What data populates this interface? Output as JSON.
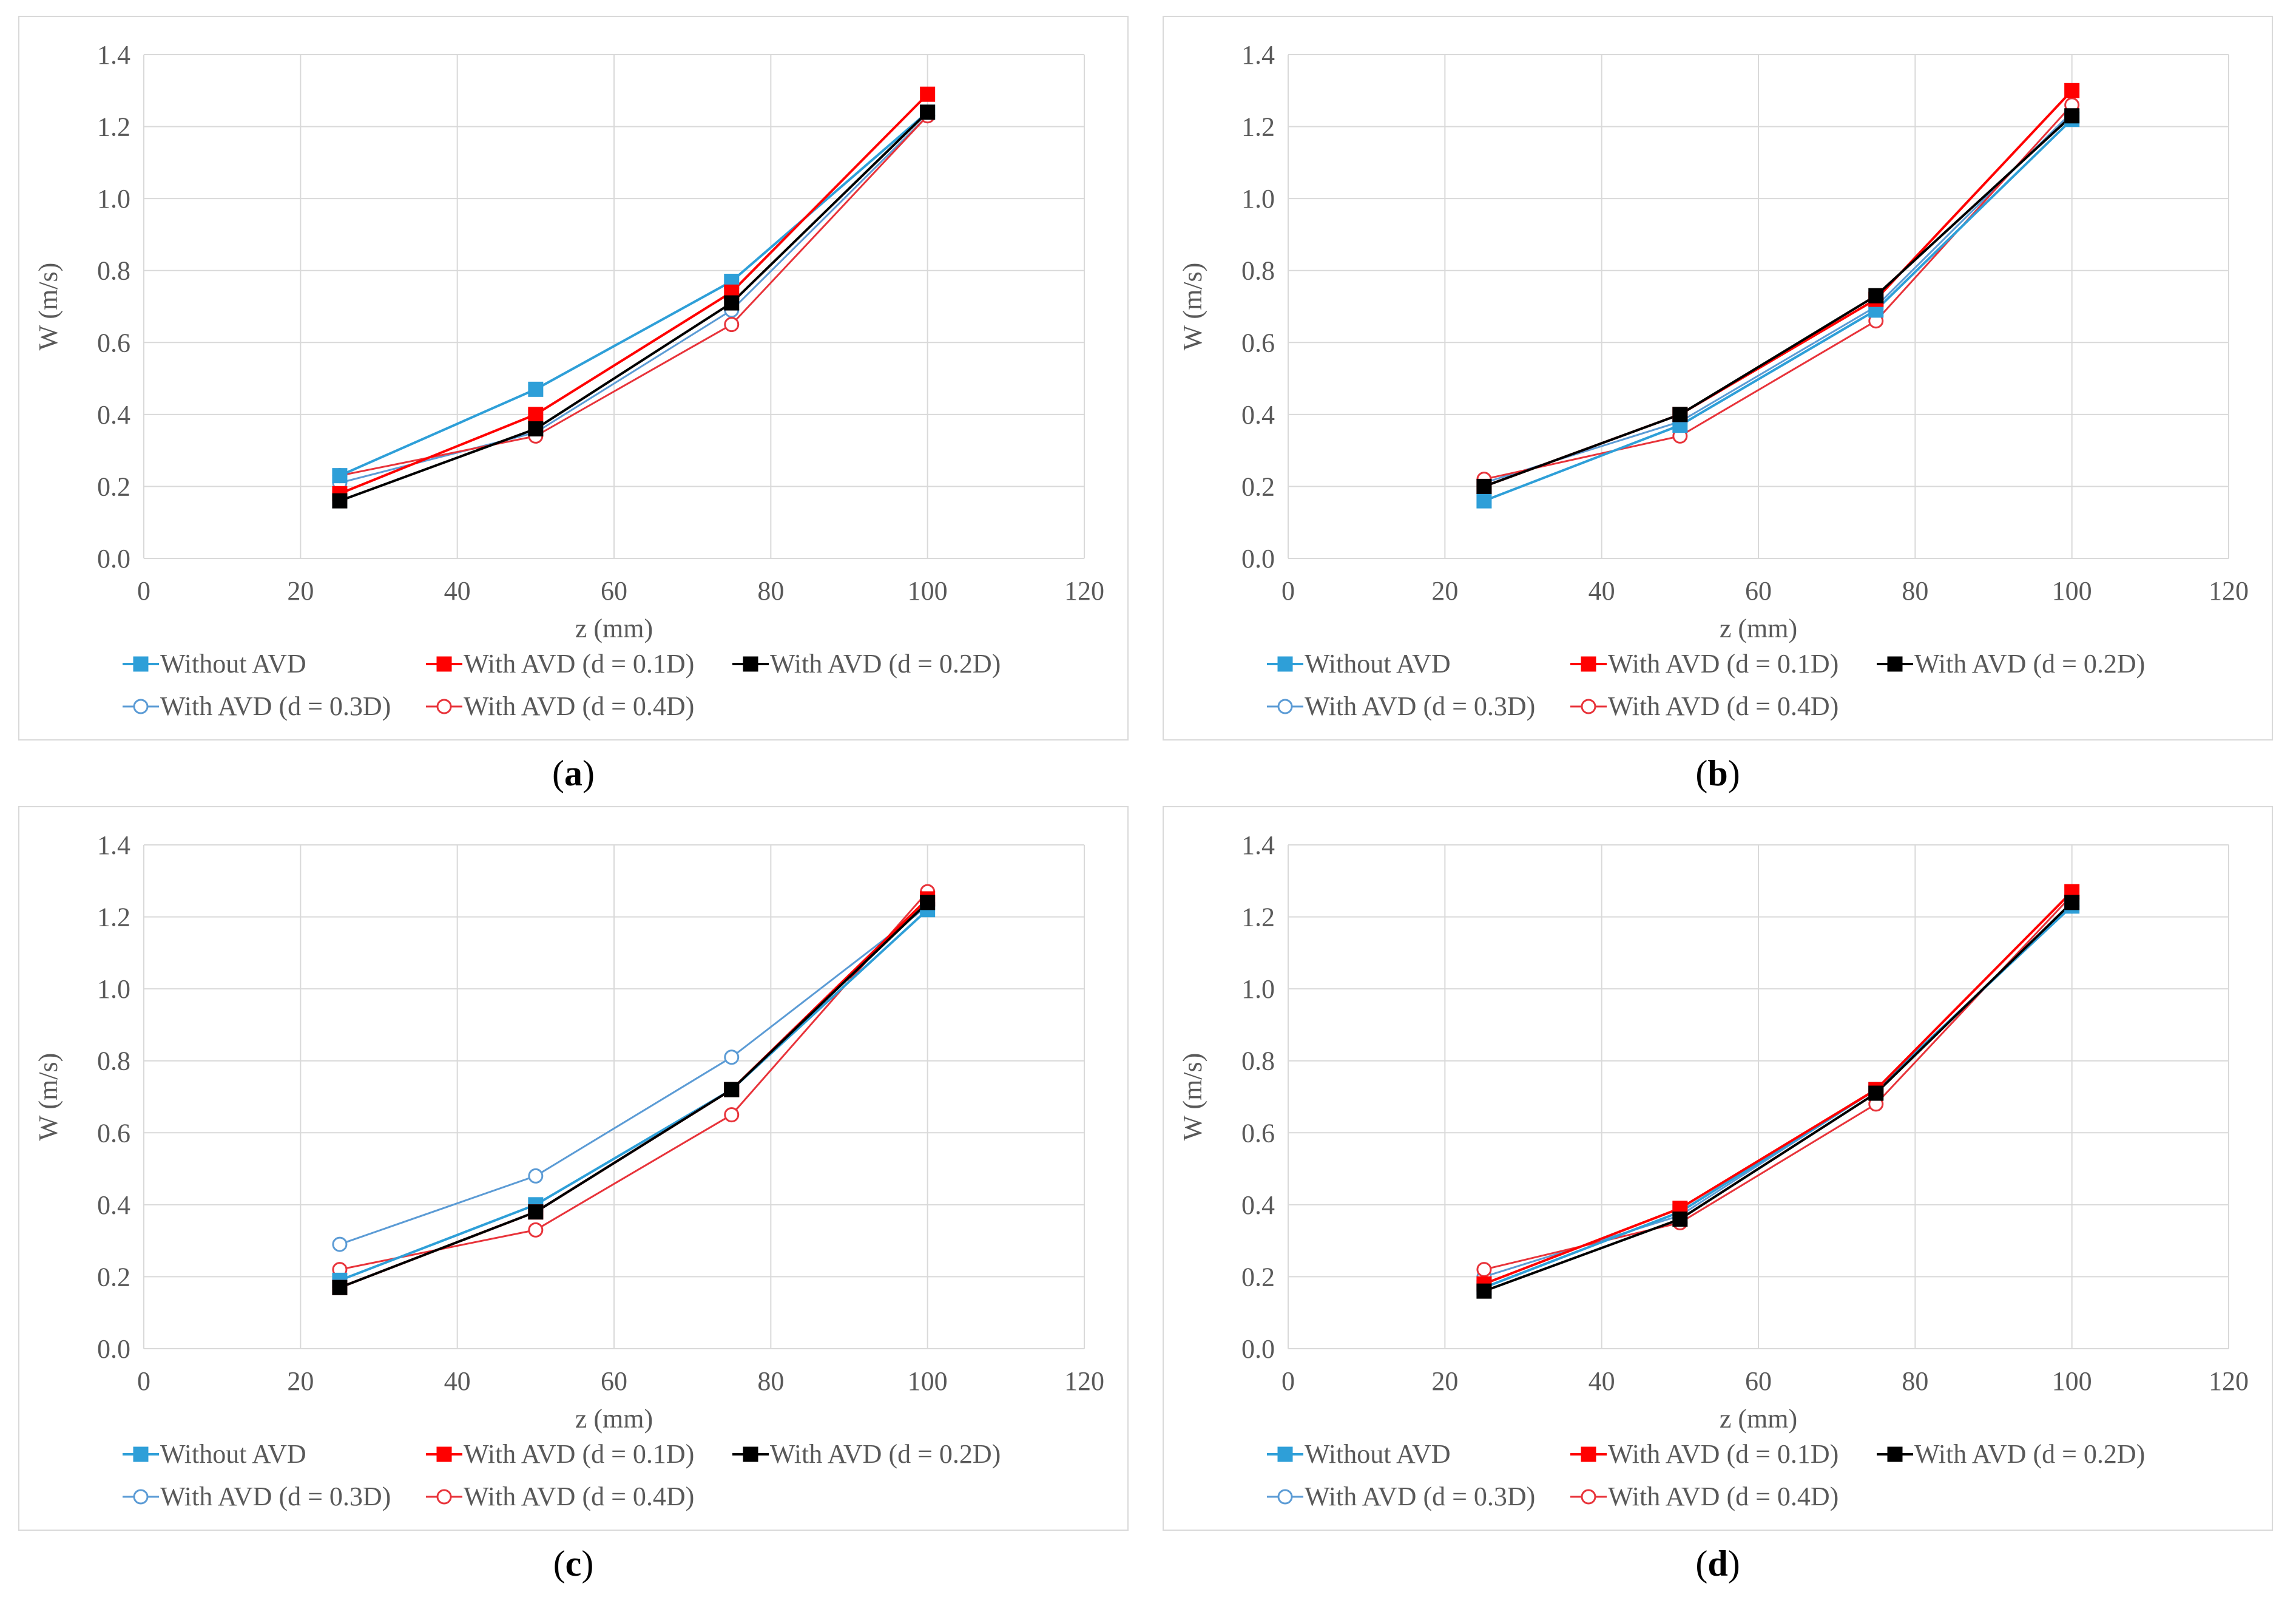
{
  "chart_data": [
    {
      "type": "line",
      "panel": "a",
      "caption": "a",
      "xlabel": "z (mm)",
      "ylabel": "W (m/s)",
      "xlim": [
        0,
        120
      ],
      "ylim": [
        0.0,
        1.4
      ],
      "xticks": [
        "0",
        "20",
        "40",
        "60",
        "80",
        "100",
        "120"
      ],
      "yticks": [
        "0.0",
        "0.2",
        "0.4",
        "0.6",
        "0.8",
        "1.0",
        "1.2",
        "1.4"
      ],
      "grid": true,
      "legend_position": "bottom",
      "x": [
        25,
        50,
        75,
        100
      ],
      "series": [
        {
          "name": "Without AVD",
          "color": "#2e9fd8",
          "marker": "square",
          "values": [
            0.23,
            0.47,
            0.77,
            1.24
          ]
        },
        {
          "name": "With AVD (d = 0.1D)",
          "color": "#ff0000",
          "marker": "square",
          "values": [
            0.18,
            0.4,
            0.74,
            1.29
          ]
        },
        {
          "name": "With AVD (d = 0.2D)",
          "color": "#000000",
          "marker": "square",
          "values": [
            0.16,
            0.36,
            0.71,
            1.24
          ]
        },
        {
          "name": "With AVD (d = 0.3D)",
          "color": "#5b9bd5",
          "marker": "circle",
          "values": [
            0.21,
            0.35,
            0.69,
            1.23
          ]
        },
        {
          "name": "With AVD (d = 0.4D)",
          "color": "#e8333a",
          "marker": "circle",
          "values": [
            0.23,
            0.34,
            0.65,
            1.23
          ]
        }
      ]
    },
    {
      "type": "line",
      "panel": "b",
      "caption": "b",
      "xlabel": "z (mm)",
      "ylabel": "W (m/s)",
      "xlim": [
        0,
        120
      ],
      "ylim": [
        0.0,
        1.4
      ],
      "xticks": [
        "0",
        "20",
        "40",
        "60",
        "80",
        "100",
        "120"
      ],
      "yticks": [
        "0.0",
        "0.2",
        "0.4",
        "0.6",
        "0.8",
        "1.0",
        "1.2",
        "1.4"
      ],
      "grid": true,
      "legend_position": "bottom",
      "x": [
        25,
        50,
        75,
        100
      ],
      "series": [
        {
          "name": "Without AVD",
          "color": "#2e9fd8",
          "marker": "square",
          "values": [
            0.16,
            0.37,
            0.69,
            1.22
          ]
        },
        {
          "name": "With AVD (d = 0.1D)",
          "color": "#ff0000",
          "marker": "square",
          "values": [
            0.2,
            0.4,
            0.72,
            1.3
          ]
        },
        {
          "name": "With AVD (d = 0.2D)",
          "color": "#000000",
          "marker": "square",
          "values": [
            0.2,
            0.4,
            0.73,
            1.23
          ]
        },
        {
          "name": "With AVD (d = 0.3D)",
          "color": "#5b9bd5",
          "marker": "circle",
          "values": [
            0.21,
            0.38,
            0.7,
            1.24
          ]
        },
        {
          "name": "With AVD (d = 0.4D)",
          "color": "#e8333a",
          "marker": "circle",
          "values": [
            0.22,
            0.34,
            0.66,
            1.26
          ]
        }
      ]
    },
    {
      "type": "line",
      "panel": "c",
      "caption": "c",
      "xlabel": "z (mm)",
      "ylabel": "W (m/s)",
      "xlim": [
        0,
        120
      ],
      "ylim": [
        0.0,
        1.4
      ],
      "xticks": [
        "0",
        "20",
        "40",
        "60",
        "80",
        "100",
        "120"
      ],
      "yticks": [
        "0.0",
        "0.2",
        "0.4",
        "0.6",
        "0.8",
        "1.0",
        "1.2",
        "1.4"
      ],
      "grid": true,
      "legend_position": "bottom",
      "x": [
        25,
        50,
        75,
        100
      ],
      "series": [
        {
          "name": "Without AVD",
          "color": "#2e9fd8",
          "marker": "square",
          "values": [
            0.19,
            0.4,
            0.72,
            1.22
          ]
        },
        {
          "name": "With AVD (d = 0.1D)",
          "color": "#ff0000",
          "marker": "square",
          "values": [
            0.17,
            0.38,
            0.72,
            1.25
          ]
        },
        {
          "name": "With AVD (d = 0.2D)",
          "color": "#000000",
          "marker": "square",
          "values": [
            0.17,
            0.38,
            0.72,
            1.24
          ]
        },
        {
          "name": "With AVD (d = 0.3D)",
          "color": "#5b9bd5",
          "marker": "circle",
          "values": [
            0.29,
            0.48,
            0.81,
            1.23
          ]
        },
        {
          "name": "With AVD (d = 0.4D)",
          "color": "#e8333a",
          "marker": "circle",
          "values": [
            0.22,
            0.33,
            0.65,
            1.27
          ]
        }
      ]
    },
    {
      "type": "line",
      "panel": "d",
      "caption": "d",
      "xlabel": "z (mm)",
      "ylabel": "W (m/s)",
      "xlim": [
        0,
        120
      ],
      "ylim": [
        0.0,
        1.4
      ],
      "xticks": [
        "0",
        "20",
        "40",
        "60",
        "80",
        "100",
        "120"
      ],
      "yticks": [
        "0.0",
        "0.2",
        "0.4",
        "0.6",
        "0.8",
        "1.0",
        "1.2",
        "1.4"
      ],
      "grid": true,
      "legend_position": "bottom",
      "x": [
        25,
        50,
        75,
        100
      ],
      "series": [
        {
          "name": "Without AVD",
          "color": "#2e9fd8",
          "marker": "square",
          "values": [
            0.17,
            0.38,
            0.72,
            1.23
          ]
        },
        {
          "name": "With AVD (d = 0.1D)",
          "color": "#ff0000",
          "marker": "square",
          "values": [
            0.18,
            0.39,
            0.72,
            1.27
          ]
        },
        {
          "name": "With AVD (d = 0.2D)",
          "color": "#000000",
          "marker": "square",
          "values": [
            0.16,
            0.36,
            0.71,
            1.24
          ]
        },
        {
          "name": "With AVD (d = 0.3D)",
          "color": "#5b9bd5",
          "marker": "circle",
          "values": [
            0.2,
            0.37,
            0.72,
            1.23
          ]
        },
        {
          "name": "With AVD (d = 0.4D)",
          "color": "#e8333a",
          "marker": "circle",
          "values": [
            0.22,
            0.35,
            0.68,
            1.26
          ]
        }
      ]
    }
  ]
}
